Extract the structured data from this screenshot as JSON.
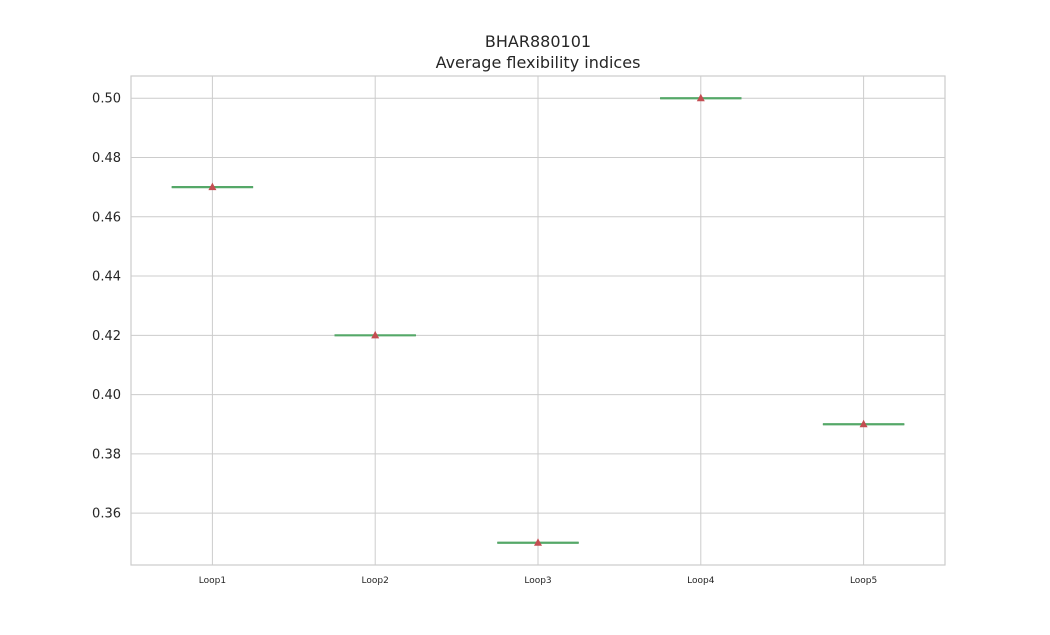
{
  "chart_data": {
    "type": "box",
    "title": "BHAR880101",
    "subtitle": "Average flexibility indices",
    "categories": [
      "Loop1",
      "Loop2",
      "Loop3",
      "Loop4",
      "Loop5"
    ],
    "values": [
      0.47,
      0.42,
      0.35,
      0.5,
      0.39
    ],
    "ylim": [
      0.3425,
      0.5075
    ],
    "yticks": [
      "0.36",
      "0.38",
      "0.40",
      "0.42",
      "0.44",
      "0.46",
      "0.48",
      "0.50"
    ],
    "grid": true,
    "colors": {
      "median": "#55a868",
      "mean_marker": "#c44e52",
      "grid": "#cccccc",
      "text": "#262626"
    }
  }
}
